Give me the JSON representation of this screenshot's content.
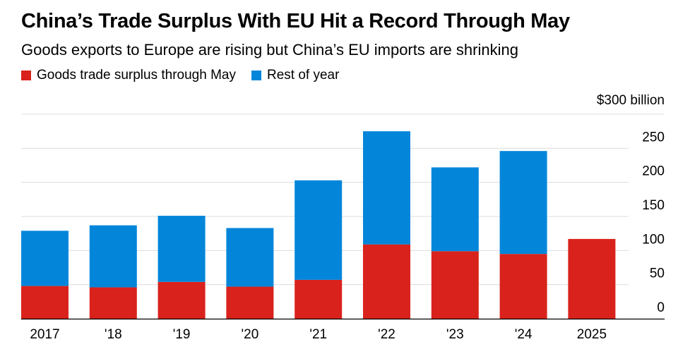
{
  "chart_data": {
    "type": "bar",
    "stacked": true,
    "title": "China’s Trade Surplus With EU Hit a Record Through May",
    "subtitle": "Goods exports to Europe are rising but China’s EU imports are shrinking",
    "ytop_label": "$300 billion",
    "categories": [
      "2017",
      "'18",
      "'19",
      "'20",
      "'21",
      "'22",
      "'23",
      "'24",
      "2025"
    ],
    "series": [
      {
        "name": "Goods trade surplus through May",
        "color": "#d9221c",
        "values": [
          48,
          46,
          54,
          47,
          57,
          109,
          99,
          95,
          117
        ]
      },
      {
        "name": "Rest of year",
        "color": "#0386da",
        "values": [
          81,
          91,
          97,
          86,
          146,
          166,
          123,
          151,
          0
        ]
      }
    ],
    "yticks": [
      {
        "value": 0,
        "label": "0"
      },
      {
        "value": 50,
        "label": "50"
      },
      {
        "value": 100,
        "label": "100"
      },
      {
        "value": 150,
        "label": "150"
      },
      {
        "value": 200,
        "label": "200"
      },
      {
        "value": 250,
        "label": "250"
      }
    ],
    "ylim": [
      0,
      300
    ],
    "grid": true,
    "legend_position": "top-left"
  }
}
